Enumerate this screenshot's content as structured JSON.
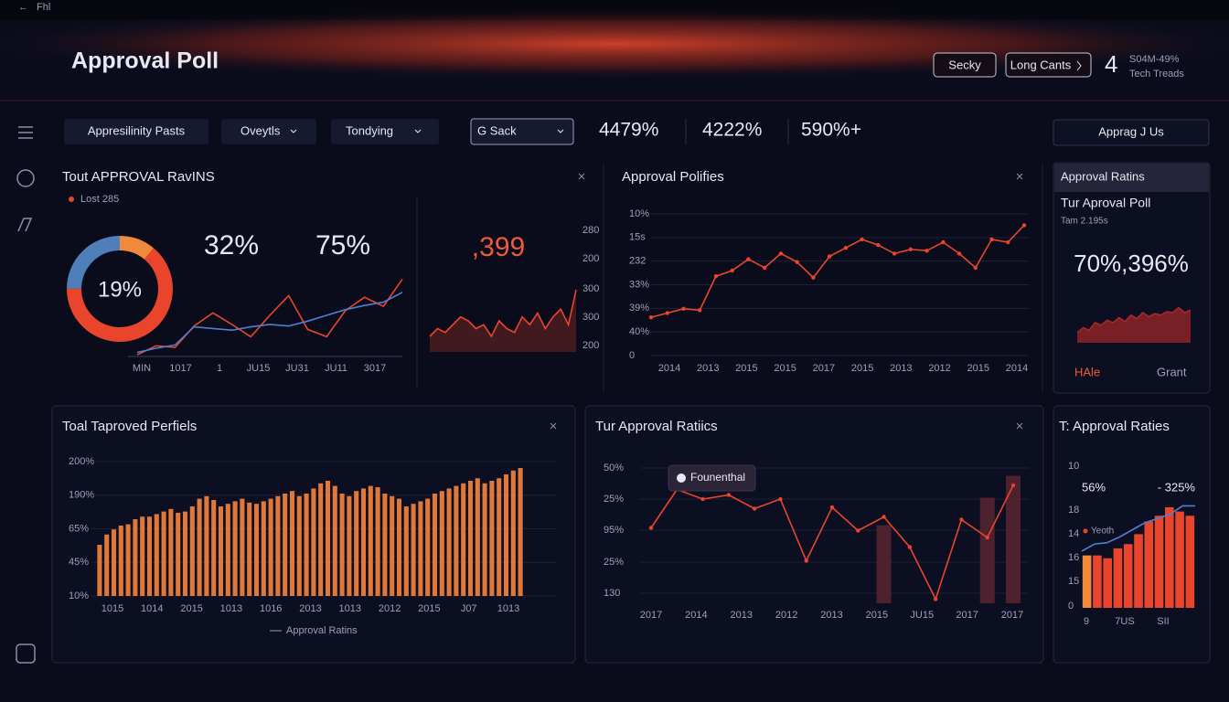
{
  "topbar": {
    "label": "Fhl"
  },
  "header": {
    "title": "Approval Poll",
    "buttons": [
      "Secky",
      "Long Cants"
    ],
    "stat": "4",
    "stat_lines": [
      "S04M-49%",
      "Tech Treads"
    ]
  },
  "toolbar": {
    "tabs": [
      "Appresilinity Pasts",
      "Oveytls",
      "Tondying",
      "G Sack"
    ],
    "stats": [
      "4479%",
      "4222%",
      "590%+"
    ],
    "button": "Apprag J Us"
  },
  "panels": [
    {
      "title": "Tout APPROVAL RavINS",
      "legend": "Lost 285",
      "donut": {
        "type": "pie",
        "center_label": "19%",
        "values": [
          11,
          64,
          25
        ],
        "colors": [
          "#f08a3a",
          "#e8452c",
          "#4f7fb8"
        ]
      },
      "big_values": [
        "32%",
        "75%"
      ],
      "chart": {
        "type": "line",
        "x_labels": [
          "MIN",
          "1017",
          "1",
          "JU15",
          "JU31",
          "JU11",
          "3017"
        ],
        "ylim": [
          0,
          100
        ],
        "series": [
          {
            "color": "#e8452c",
            "values": [
              2,
              13,
              11,
              37,
              53,
              39,
              24,
              50,
              74,
              33,
              24,
              56,
              72,
              61,
              94
            ]
          },
          {
            "color": "#4f7fd0",
            "values": [
              5,
              10,
              14,
              36,
              34,
              32,
              36,
              39,
              37,
              43,
              50,
              57,
              62,
              66,
              78
            ]
          }
        ]
      }
    },
    {
      "value_label": ",399",
      "chart": {
        "type": "area",
        "y_labels": [
          "280",
          "200",
          "300",
          "300",
          "200"
        ],
        "ylim": [
          0,
          100
        ],
        "series": [
          {
            "color": "#e8452c",
            "values": [
              20,
              30,
              25,
              35,
              45,
              40,
              30,
              35,
              20,
              40,
              30,
              25,
              45,
              35,
              50,
              30,
              45,
              55,
              35,
              80
            ]
          }
        ]
      }
    },
    {
      "title": "Approval Polifies",
      "chart": {
        "type": "line",
        "y_labels": [
          "10%",
          "15s",
          "232",
          "33%",
          "39%",
          "40%",
          "0"
        ],
        "x_labels": [
          "2014",
          "2013",
          "2015",
          "2015",
          "2017",
          "2015",
          "2013",
          "2012",
          "2015",
          "2014"
        ],
        "ylim": [
          0,
          100
        ],
        "dots": true,
        "series": [
          {
            "color": "#e8452c",
            "values": [
              27,
              30,
              33,
              32,
              56,
              60,
              68,
              62,
              72,
              66,
              55,
              70,
              76,
              82,
              78,
              72,
              75,
              74,
              80,
              72,
              62,
              82,
              80,
              92
            ]
          }
        ]
      }
    },
    {
      "title": "Approval Ratins",
      "subtitle": "Tur Aproval Poll",
      "note": "Tam 2.195s",
      "value_label": "70%,396%",
      "chart": {
        "type": "area",
        "ylim": [
          0,
          100
        ],
        "series": [
          {
            "color": "#a8282a",
            "values": [
              20,
              30,
              25,
              40,
              35,
              45,
              40,
              50,
              42,
              55,
              48,
              60,
              52,
              58,
              55,
              62,
              60,
              70,
              60,
              65
            ]
          }
        ]
      },
      "footer": [
        "HAle",
        "Grant"
      ]
    },
    {
      "title": "Toal Taproved Perfiels",
      "legend": "Approval Ratins",
      "chart": {
        "type": "bar",
        "y_labels": [
          "200%",
          "190%",
          "65%",
          "45%",
          "10%"
        ],
        "x_labels": [
          "1015",
          "1014",
          "2015",
          "1013",
          "1016",
          "2013",
          "1013",
          "2012",
          "2015",
          "J07",
          "1013"
        ],
        "ylim": [
          0,
          105
        ],
        "color": "#e0783a",
        "values": [
          40,
          48,
          52,
          55,
          56,
          60,
          62,
          62,
          64,
          66,
          68,
          65,
          66,
          70,
          76,
          78,
          75,
          70,
          72,
          74,
          76,
          73,
          72,
          74,
          76,
          78,
          80,
          82,
          78,
          80,
          84,
          88,
          90,
          86,
          80,
          78,
          82,
          84,
          86,
          85,
          80,
          78,
          76,
          70,
          72,
          74,
          76,
          80,
          82,
          84,
          86,
          88,
          90,
          92,
          88,
          90,
          92,
          95,
          98,
          100
        ]
      }
    },
    {
      "title": "Tur Approval Ratiics",
      "tooltip": "Founenthal",
      "chart": {
        "type": "line",
        "y_labels": [
          "50%",
          "25%",
          "95%",
          "25%",
          "130"
        ],
        "x_labels": [
          "2017",
          "2014",
          "2013",
          "2012",
          "2013",
          "2015",
          "JU15",
          "2017",
          "2017"
        ],
        "ylim": [
          0,
          100
        ],
        "dots": true,
        "series": [
          {
            "color": "#e8452c",
            "values": [
              55,
              83,
              76,
              79,
              69,
              76,
              31,
              70,
              53,
              63,
              41,
              3,
              61,
              48,
              86
            ]
          }
        ],
        "bar_values": [
          null,
          null,
          null,
          null,
          null,
          null,
          null,
          null,
          null,
          57,
          null,
          null,
          null,
          77,
          93
        ],
        "bar_color": "#5a2430"
      }
    },
    {
      "title": "T: Approval Raties",
      "labels": [
        "56%",
        "- 325%"
      ],
      "legend": "Yeoth",
      "chart": {
        "type": "bar",
        "y_labels": [
          "10",
          "18",
          "14",
          "16",
          "15",
          "0"
        ],
        "x_labels": [
          "9",
          "7US",
          "SII"
        ],
        "ylim": [
          0,
          100
        ],
        "values": [
          37,
          37,
          35,
          42,
          45,
          52,
          61,
          65,
          71,
          68,
          65
        ],
        "colors": [
          "#f08a3a",
          "#e8452c",
          "#e8452c",
          "#e8452c",
          "#e8452c",
          "#e8452c",
          "#e8452c",
          "#e8452c",
          "#e8452c",
          "#e8452c",
          "#e8452c"
        ],
        "series": [
          {
            "color": "#4f7fd0",
            "values": [
              40,
              45,
              46,
              50,
              55,
              60,
              63,
              66,
              72,
              72
            ]
          }
        ]
      }
    }
  ]
}
